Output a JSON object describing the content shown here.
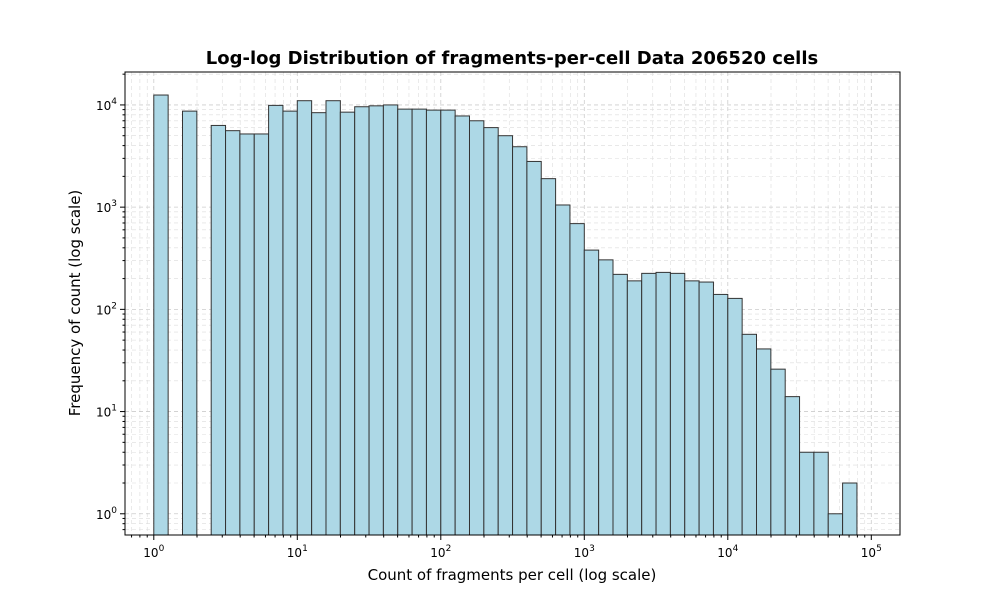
{
  "chart_data": {
    "type": "bar",
    "title": "Log-log Distribution of fragments-per-cell Data 206520 cells",
    "xlabel": "Count of fragments per cell (log scale)",
    "ylabel": "Frequency of count (log scale)",
    "xscale": "log",
    "yscale": "log",
    "xlim": [
      0.63,
      158489
    ],
    "ylim": [
      0.62,
      21000
    ],
    "grid": true,
    "bar_color": "#add8e6",
    "edge_color": "#333333",
    "bins_log10": {
      "start": 0.0,
      "width": 0.1
    },
    "values": [
      12500,
      0,
      8700,
      0,
      6300,
      5600,
      5200,
      5200,
      9900,
      8700,
      11000,
      8400,
      11000,
      8500,
      9600,
      9800,
      10000,
      9100,
      9100,
      8900,
      8900,
      7800,
      7000,
      6000,
      5000,
      3900,
      2800,
      1900,
      1050,
      690,
      380,
      305,
      220,
      190,
      225,
      230,
      225,
      190,
      185,
      140,
      128,
      57,
      41,
      26,
      14,
      4,
      4,
      1,
      2
    ],
    "x_ticks": [
      {
        "value": 1,
        "base": "10",
        "exp": "0"
      },
      {
        "value": 10,
        "base": "10",
        "exp": "1"
      },
      {
        "value": 100,
        "base": "10",
        "exp": "2"
      },
      {
        "value": 1000,
        "base": "10",
        "exp": "3"
      },
      {
        "value": 10000,
        "base": "10",
        "exp": "4"
      },
      {
        "value": 100000,
        "base": "10",
        "exp": "5"
      }
    ],
    "y_ticks": [
      {
        "value": 1,
        "base": "10",
        "exp": "0"
      },
      {
        "value": 10,
        "base": "10",
        "exp": "1"
      },
      {
        "value": 100,
        "base": "10",
        "exp": "2"
      },
      {
        "value": 1000,
        "base": "10",
        "exp": "3"
      },
      {
        "value": 10000,
        "base": "10",
        "exp": "4"
      }
    ]
  }
}
